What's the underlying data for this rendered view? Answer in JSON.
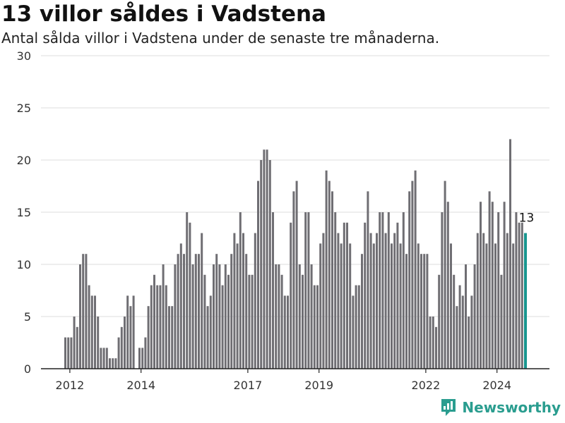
{
  "title": "13 villor såldes i Vadstena",
  "subtitle": "Antal sålda villor i Vadstena under de senaste tre månaderna.",
  "brand": "Newsworthy",
  "colors": {
    "bar": "#6f6e73",
    "highlight": "#19968f",
    "grid": "#dddddd",
    "axis": "#222222"
  },
  "chart_data": {
    "type": "bar",
    "title": "",
    "xlabel": "",
    "ylabel": "",
    "ylim": [
      0,
      30
    ],
    "yticks": [
      0,
      5,
      10,
      15,
      20,
      25,
      30
    ],
    "xticks": [
      "2012",
      "2014",
      "2017",
      "2019",
      "2022",
      "2024"
    ],
    "grid": true,
    "x_start": "2011-11",
    "interval": "month",
    "values": [
      3,
      3,
      3,
      5,
      4,
      10,
      11,
      11,
      8,
      7,
      7,
      5,
      2,
      2,
      2,
      1,
      1,
      1,
      3,
      4,
      5,
      7,
      6,
      7,
      0,
      2,
      2,
      3,
      6,
      8,
      9,
      8,
      8,
      10,
      8,
      6,
      6,
      10,
      11,
      12,
      11,
      15,
      14,
      10,
      11,
      11,
      13,
      9,
      6,
      7,
      10,
      11,
      10,
      8,
      10,
      9,
      11,
      13,
      12,
      15,
      13,
      11,
      9,
      9,
      13,
      18,
      20,
      21,
      21,
      20,
      15,
      10,
      10,
      9,
      7,
      7,
      14,
      17,
      18,
      10,
      9,
      15,
      15,
      10,
      8,
      8,
      12,
      13,
      19,
      18,
      17,
      15,
      13,
      12,
      14,
      14,
      12,
      7,
      8,
      8,
      11,
      14,
      17,
      13,
      12,
      13,
      15,
      15,
      13,
      15,
      12,
      13,
      14,
      12,
      15,
      11,
      17,
      18,
      19,
      12,
      11,
      11,
      11,
      5,
      5,
      4,
      9,
      15,
      18,
      16,
      12,
      9,
      6,
      8,
      7,
      10,
      5,
      7,
      10,
      13,
      16,
      13,
      12,
      17,
      16,
      12,
      15,
      9,
      16,
      13,
      22,
      12,
      15,
      14,
      14,
      13
    ],
    "highlight_index": 155,
    "annotation": "13"
  }
}
